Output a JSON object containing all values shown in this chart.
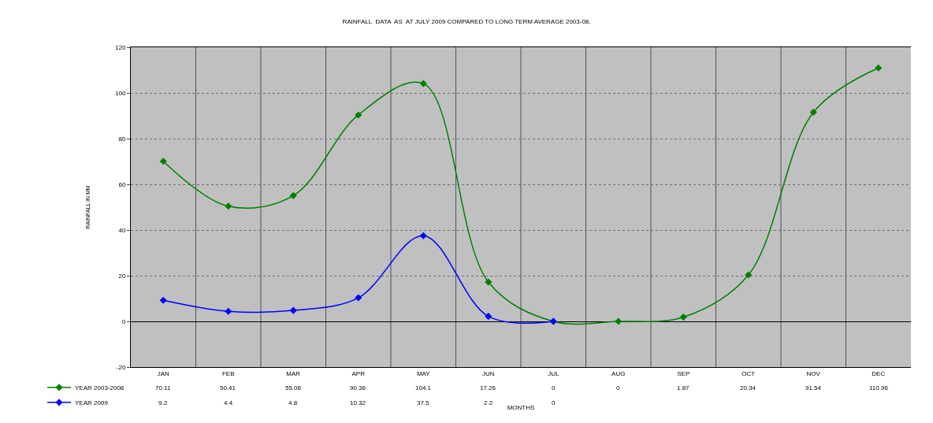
{
  "chart_data": {
    "type": "line",
    "title": "RAINFALL  DATA  AS  AT JULY 2009 COMPARED TO LONG TERM AVERAGE 2003-08.",
    "xlabel": "MONTHS",
    "ylabel": "RAINFALL IN MM",
    "categories": [
      "JAN",
      "FEB",
      "MAR",
      "APR",
      "MAY",
      "JUN",
      "JUL",
      "AUG",
      "SEP",
      "OCT",
      "NOV",
      "DEC"
    ],
    "series": [
      {
        "name": "YEAR 2003-2008",
        "color": "#008000",
        "values": [
          70.11,
          50.41,
          55.06,
          90.36,
          104.1,
          17.26,
          0,
          0,
          1.87,
          20.34,
          91.54,
          110.96
        ]
      },
      {
        "name": "YEAR 2009",
        "color": "#0000ff",
        "values": [
          9.2,
          4.4,
          4.8,
          10.32,
          37.5,
          2.2,
          0,
          null,
          null,
          null,
          null,
          null
        ]
      }
    ],
    "ylim": [
      -20,
      120
    ],
    "yticks": [
      -20,
      0,
      20,
      40,
      60,
      80,
      100,
      120
    ],
    "grid": true,
    "legend": "bottom left",
    "marker": "diamond",
    "line_style": "solid",
    "data_labels": true
  }
}
